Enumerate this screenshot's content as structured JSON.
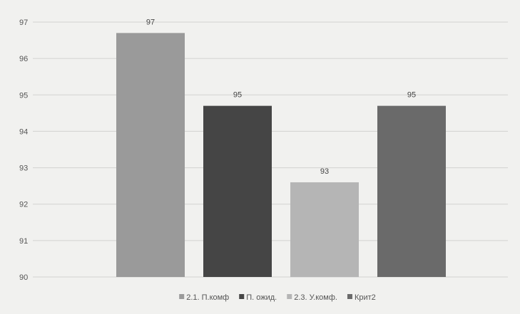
{
  "chart_data": {
    "type": "bar",
    "title": "",
    "xlabel": "",
    "ylabel": "",
    "ylim": [
      90,
      97
    ],
    "yticks": [
      90,
      91,
      92,
      93,
      94,
      95,
      96,
      97
    ],
    "grid": true,
    "legend_position": "bottom",
    "series": [
      {
        "name": "2.1. П.комф",
        "value": 96.7,
        "label": "97",
        "color": "#9a9a9a"
      },
      {
        "name": "П. ожид.",
        "value": 94.7,
        "label": "95",
        "color": "#454545"
      },
      {
        "name": "2.3. У.комф.",
        "value": 92.6,
        "label": "93",
        "color": "#b5b5b5"
      },
      {
        "name": "Крит2",
        "value": 94.7,
        "label": "95",
        "color": "#6a6a6a"
      }
    ]
  }
}
